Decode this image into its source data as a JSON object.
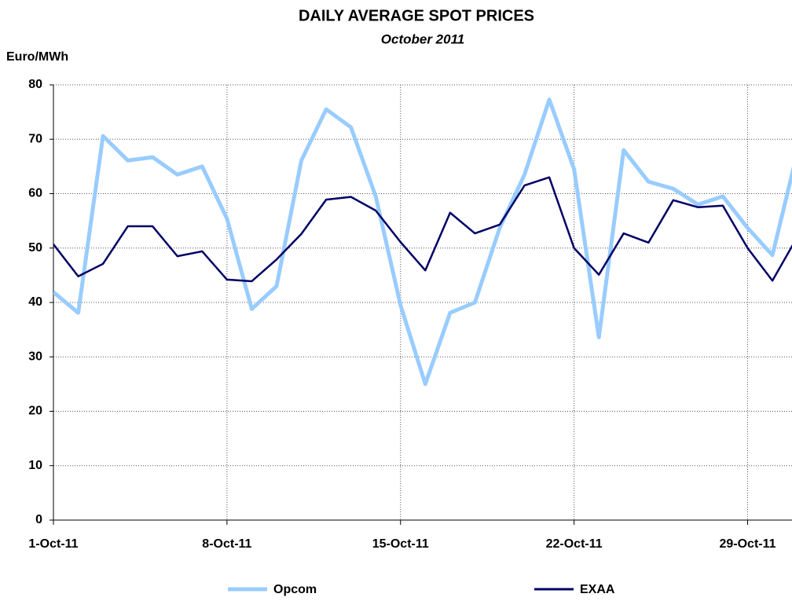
{
  "chart_data": {
    "type": "line",
    "title": "DAILY AVERAGE SPOT PRICES",
    "subtitle": "October 2011",
    "y_label": "Euro/MWh",
    "x": [
      1,
      2,
      3,
      4,
      5,
      6,
      7,
      8,
      9,
      10,
      11,
      12,
      13,
      14,
      15,
      16,
      17,
      18,
      19,
      20,
      21,
      22,
      23,
      24,
      25,
      26,
      27,
      28,
      29,
      30,
      31
    ],
    "xlim": [
      1,
      30.79
    ],
    "xticks": [
      {
        "value": 1,
        "label": "1-Oct-11"
      },
      {
        "value": 8,
        "label": "8-Oct-11"
      },
      {
        "value": 15,
        "label": "15-Oct-11"
      },
      {
        "value": 22,
        "label": "22-Oct-11"
      },
      {
        "value": 29,
        "label": "29-Oct-11"
      }
    ],
    "ylim": [
      0,
      80
    ],
    "yticks": [
      0,
      10,
      20,
      30,
      40,
      50,
      60,
      70,
      80
    ],
    "grid": true,
    "legend": "bottom",
    "series": [
      {
        "name": "Opcom",
        "color": "#99ccff",
        "values": [
          41.9,
          38.1,
          70.6,
          66.1,
          66.7,
          63.5,
          65.0,
          55.4,
          38.8,
          43.0,
          66.1,
          75.5,
          72.2,
          59.5,
          39.5,
          25.0,
          38.1,
          40.0,
          53.7,
          63.5,
          77.3,
          64.5,
          33.6,
          68.0,
          62.2,
          60.9,
          58.0,
          59.5,
          53.7,
          48.7,
          67.5
        ]
      },
      {
        "name": "EXAA",
        "color": "#000066",
        "values": [
          50.7,
          44.8,
          47.1,
          54.0,
          54.0,
          48.5,
          49.4,
          44.2,
          43.9,
          47.9,
          52.6,
          58.9,
          59.4,
          56.9,
          51.1,
          45.9,
          56.5,
          52.7,
          54.3,
          61.5,
          63.0,
          50.0,
          45.1,
          52.7,
          51.0,
          58.8,
          57.5,
          57.8,
          50.0,
          44.0,
          52.0
        ]
      }
    ]
  }
}
